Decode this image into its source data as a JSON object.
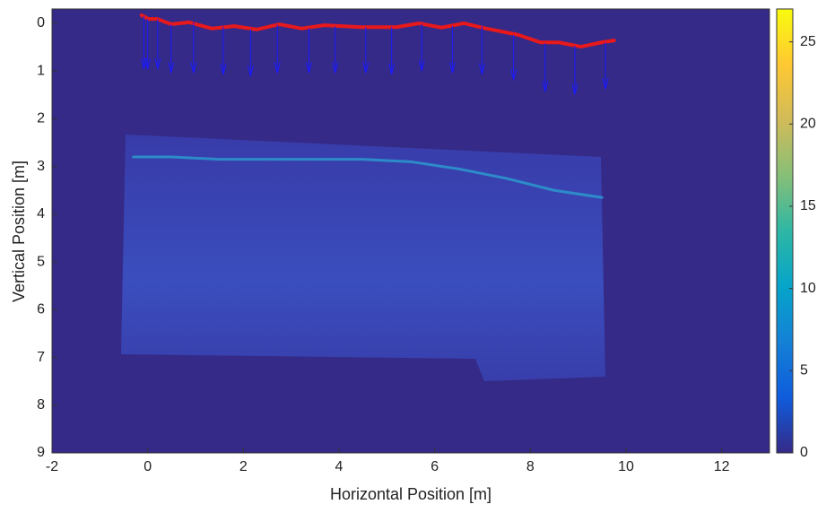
{
  "chart_data": {
    "type": "radargram",
    "xlabel": "Horizontal Position [m]",
    "ylabel": "Vertical Position [m]",
    "xlim": [
      -2,
      13
    ],
    "xticks": [
      -2,
      0,
      2,
      4,
      6,
      8,
      10,
      12
    ],
    "ylim": [
      -0.3,
      9
    ],
    "yticks": [
      0,
      1,
      2,
      3,
      4,
      5,
      6,
      7,
      8,
      9
    ],
    "y_reversed": true,
    "clim": [
      0,
      27
    ],
    "cticks": [
      0,
      5,
      10,
      15,
      20,
      25
    ],
    "colormap": [
      "#352a87",
      "#0f5cdd",
      "#1481d6",
      "#06a4ca",
      "#2eb7a4",
      "#87bf77",
      "#d1bb59",
      "#fec832",
      "#f9fb0e"
    ],
    "series": [
      {
        "kind": "line",
        "color": "#e8191b",
        "x": [
          -0.13,
          0.02,
          0.2,
          0.49,
          0.87,
          1.34,
          1.81,
          2.28,
          2.75,
          3.22,
          3.69,
          4.44,
          5.2,
          5.67,
          6.14,
          6.61,
          7.08,
          7.74,
          8.21,
          8.59,
          9.06,
          9.49,
          9.75
        ],
        "y": [
          -0.17,
          -0.09,
          -0.09,
          0.02,
          -0.02,
          0.11,
          0.06,
          0.13,
          0.02,
          0.11,
          0.04,
          0.08,
          0.08,
          0,
          0.09,
          0,
          0.11,
          0.24,
          0.4,
          0.4,
          0.49,
          0.4,
          0.36
        ]
      },
      {
        "kind": "reflector",
        "color": "#2a9fd0",
        "x": [
          -0.3,
          0.5,
          1.5,
          2.5,
          3.5,
          4.5,
          5.5,
          6.5,
          7.5,
          8.5,
          9.5
        ],
        "y": [
          2.8,
          2.8,
          2.85,
          2.85,
          2.85,
          2.85,
          2.9,
          3.05,
          3.25,
          3.5,
          3.65
        ]
      }
    ],
    "arrows": {
      "color": "#1a1aff",
      "x": [
        -0.08,
        0,
        0.21,
        0.49,
        0.96,
        1.58,
        2.15,
        2.71,
        3.37,
        3.92,
        4.56,
        5.1,
        5.73,
        6.37,
        6.99,
        7.65,
        8.31,
        8.93,
        9.57
      ],
      "y0": [
        -0.15,
        -0.09,
        -0.09,
        0.02,
        -0.02,
        0.07,
        0.12,
        0.03,
        0.1,
        0.06,
        0.08,
        0.08,
        0.01,
        0.05,
        0.06,
        0.24,
        0.42,
        0.47,
        0.4
      ],
      "y1": [
        0.96,
        0.96,
        0.96,
        1.04,
        1.04,
        1.07,
        1.11,
        1.04,
        1.04,
        1.04,
        1.04,
        1.07,
        1.0,
        1.04,
        1.07,
        1.19,
        1.43,
        1.49,
        1.38
      ]
    }
  }
}
